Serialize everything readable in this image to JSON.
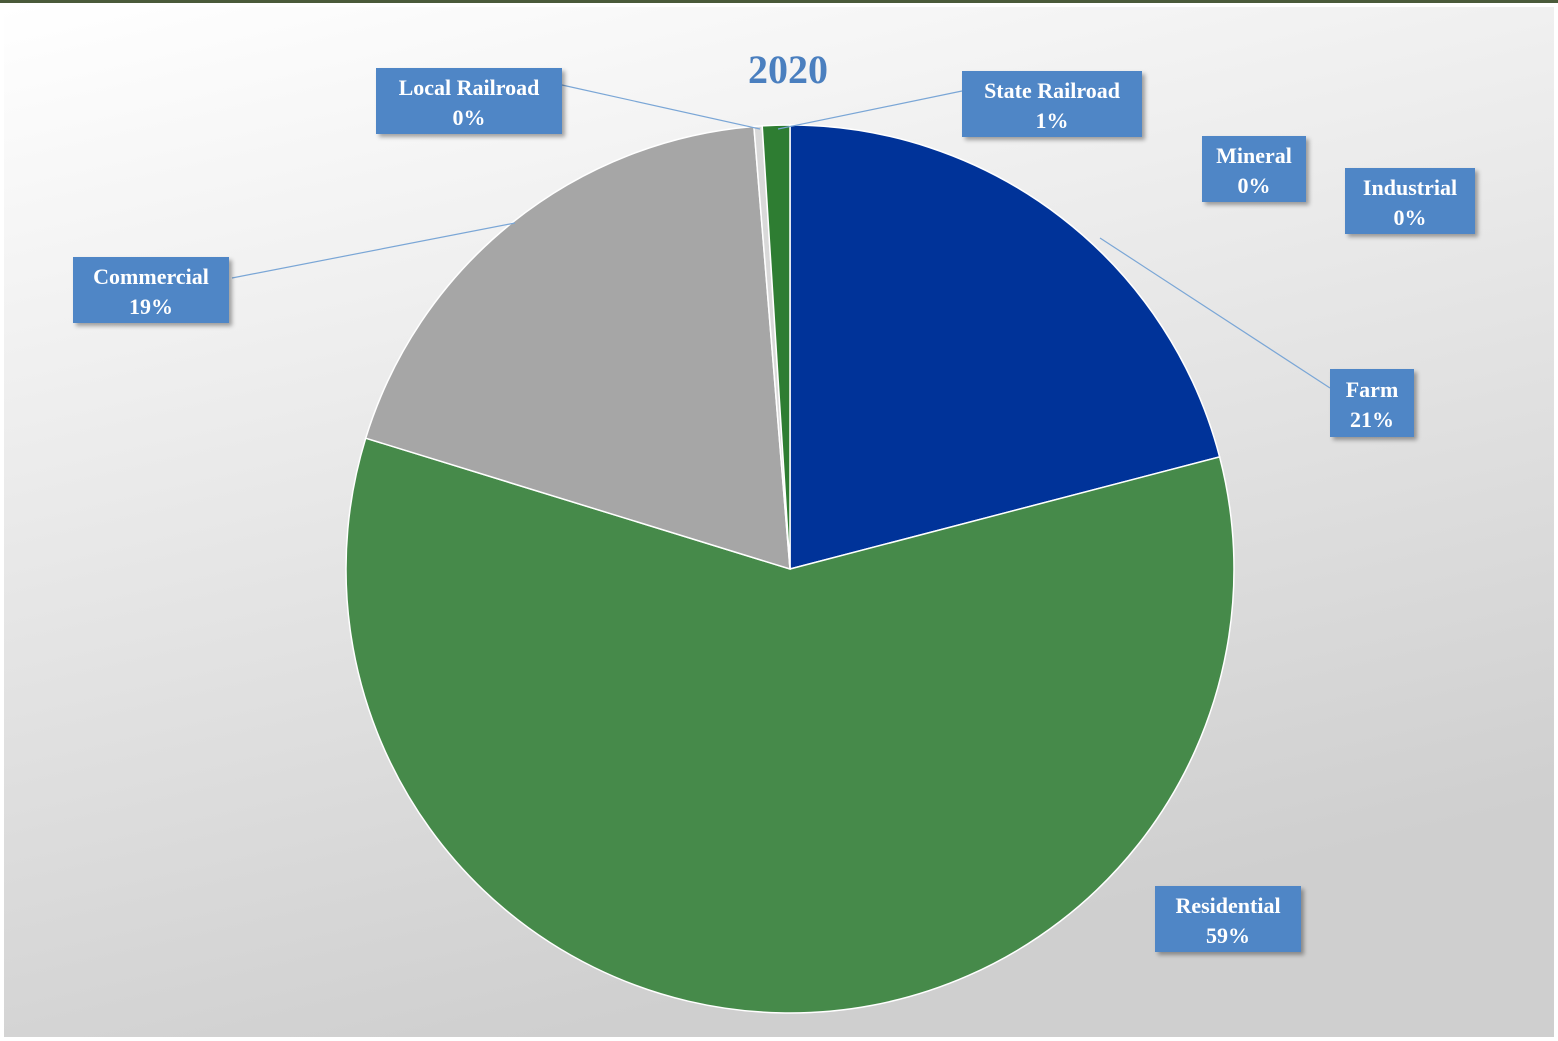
{
  "chart_data": {
    "type": "pie",
    "title": "2020",
    "slices": [
      {
        "name": "Farm",
        "value": 21,
        "label": "21%",
        "color": "#003399"
      },
      {
        "name": "Mineral",
        "value": 0,
        "label": "0%",
        "color": "#2f5597"
      },
      {
        "name": "Industrial",
        "value": 0,
        "label": "0%",
        "color": "#7f7f7f"
      },
      {
        "name": "Residential",
        "value": 59,
        "label": "59%",
        "color": "#468a4a"
      },
      {
        "name": "Commercial",
        "value": 19,
        "label": "19%",
        "color": "#a6a6a6"
      },
      {
        "name": "Local Railroad",
        "value": 0.3,
        "label": "0%",
        "color": "#d9d9d9"
      },
      {
        "name": "State Railroad",
        "value": 1,
        "label": "1%",
        "color": "#2e7d32"
      }
    ]
  },
  "colors": {
    "label_box": "#4f86c6",
    "title": "#4a7fbf",
    "leader_line": "#7aa6d6"
  }
}
